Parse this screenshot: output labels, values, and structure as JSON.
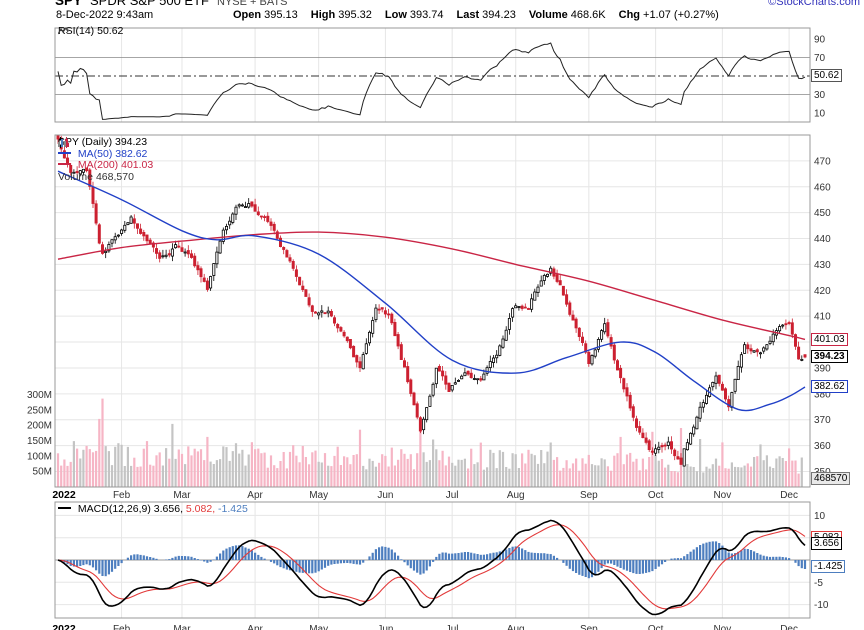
{
  "header": {
    "symbol": "SPY",
    "name": "SPDR S&P 500 ETF",
    "exchange": "NYSE + BATS",
    "copyright": "©StockCharts.com",
    "datetime": "8-Dec-2022 9:43am",
    "quote": {
      "open_label": "Open",
      "open": "395.13",
      "high_label": "High",
      "high": "395.32",
      "low_label": "Low",
      "low": "393.74",
      "last_label": "Last",
      "last": "394.23",
      "volume_label": "Volume",
      "volume": "468.6K",
      "chg_label": "Chg",
      "chg": "+1.07 (+0.27%)"
    }
  },
  "rsi_panel": {
    "label": "RSI(14)",
    "value": "50.62",
    "badge": "50.62"
  },
  "price_panel": {
    "legend_symbol": "SPY (Daily)",
    "legend_last": "394.23",
    "ma50_label": "MA(50)",
    "ma50_value": "382.62",
    "ma200_label": "MA(200)",
    "ma200_value": "401.03",
    "volume_label": "Volume",
    "volume_value": "468,570",
    "badges": {
      "ma200": "401.03",
      "last": "394.23",
      "ma50": "382.62",
      "volume": "468570"
    }
  },
  "macd_panel": {
    "label": "MACD(12,26,9)",
    "values": [
      "3.656,",
      "5.082,",
      "-1.425"
    ],
    "badges": {
      "signal": "5.082",
      "macd": "3.656",
      "hist": "-1.425"
    }
  },
  "colors": {
    "candle_up": "#000000",
    "candle_down": "#cc2030",
    "ma50": "#2140c7",
    "ma200": "#c92545",
    "volume_up": "#c4c4c4",
    "volume_down": "#f6b5c5",
    "macd_line": "#000000",
    "signal_line": "#e23a3a",
    "histogram": "#4d7ebf",
    "rsi_line": "#222222",
    "grid": "#e6e6e6",
    "panel_border": "#999999",
    "axis_text": "#333333",
    "copyright": "#3333bb"
  },
  "chart_data": [
    {
      "type": "line",
      "panel": "RSI",
      "title": "RSI(14)",
      "last_value": 50.62,
      "ylim": [
        0,
        100
      ],
      "yticks": [
        90,
        70,
        30,
        10
      ],
      "current_tick": 50.62,
      "reference_lines": {
        "overbought": 70,
        "midline": 50,
        "oversold": 30
      }
    },
    {
      "type": "candlestick",
      "panel": "price",
      "title": "SPY (Daily)",
      "last_close": 394.23,
      "ylim": [
        344,
        480
      ],
      "yticks": [
        470,
        460,
        450,
        440,
        430,
        420,
        410,
        400,
        390,
        380,
        370,
        360,
        350
      ],
      "trading_days": 236,
      "x_months": {
        "labels": [
          "2022",
          "Feb",
          "Mar",
          "Apr",
          "May",
          "Jun",
          "Jul",
          "Aug",
          "Sep",
          "Oct",
          "Nov",
          "Dec"
        ],
        "start_index": [
          0,
          20,
          39,
          62,
          82,
          103,
          124,
          144,
          167,
          188,
          209,
          230
        ]
      },
      "last_bar": {
        "open": 395.13,
        "high": 395.32,
        "low": 393.74,
        "close": 394.23,
        "volume": 468570
      },
      "weekly_closes": [
        [
          0,
          477.7
        ],
        [
          4,
          466.1
        ],
        [
          9,
          464.7
        ],
        [
          13,
          438.0
        ],
        [
          14,
          434.5
        ],
        [
          18,
          442.0
        ],
        [
          23,
          448.7
        ],
        [
          28,
          440.5
        ],
        [
          32,
          434.2
        ],
        [
          37,
          437.8
        ],
        [
          42,
          432.2
        ],
        [
          47,
          420.1
        ],
        [
          52,
          444.5
        ],
        [
          57,
          452.7
        ],
        [
          61,
          452.9
        ],
        [
          66,
          447.6
        ],
        [
          70,
          437.8
        ],
        [
          75,
          426.0
        ],
        [
          80,
          412.0
        ],
        [
          85,
          411.3
        ],
        [
          90,
          401.7
        ],
        [
          95,
          389.6
        ],
        [
          100,
          415.3
        ],
        [
          104,
          410.5
        ],
        [
          109,
          389.8
        ],
        [
          114,
          365.9
        ],
        [
          119,
          390.1
        ],
        [
          123,
          381.2
        ],
        [
          128,
          388.7
        ],
        [
          133,
          385.1
        ],
        [
          138,
          395.1
        ],
        [
          143,
          412.0
        ],
        [
          148,
          413.5
        ],
        [
          153,
          427.1
        ],
        [
          155,
          429.5
        ],
        [
          158,
          422.1
        ],
        [
          163,
          405.3
        ],
        [
          167,
          392.2
        ],
        [
          172,
          406.6
        ],
        [
          177,
          385.6
        ],
        [
          182,
          368.0
        ],
        [
          187,
          357.2
        ],
        [
          192,
          362.8
        ],
        [
          196,
          352.5
        ],
        [
          197,
          357.6
        ],
        [
          202,
          374.3
        ],
        [
          207,
          389.0
        ],
        [
          211,
          376.4
        ],
        [
          216,
          398.5
        ],
        [
          221,
          396.0
        ],
        [
          225,
          402.3
        ],
        [
          230,
          406.9
        ],
        [
          233,
          393.2
        ],
        [
          235,
          394.23
        ]
      ],
      "ma50": {
        "label": "MA(50)",
        "last": 382.62,
        "anchors": [
          [
            0,
            466
          ],
          [
            20,
            455
          ],
          [
            39,
            443
          ],
          [
            50,
            439.5
          ],
          [
            62,
            441
          ],
          [
            82,
            434
          ],
          [
            103,
            415
          ],
          [
            124,
            393
          ],
          [
            144,
            388
          ],
          [
            160,
            394
          ],
          [
            177,
            400
          ],
          [
            188,
            396
          ],
          [
            200,
            385
          ],
          [
            214,
            374
          ],
          [
            224,
            376
          ],
          [
            230,
            379
          ],
          [
            235,
            382.62
          ]
        ]
      },
      "ma200": {
        "label": "MA(200)",
        "last": 401.03,
        "anchors": [
          [
            0,
            432
          ],
          [
            20,
            436.5
          ],
          [
            39,
            439
          ],
          [
            62,
            441.5
          ],
          [
            82,
            442.5
          ],
          [
            103,
            440.5
          ],
          [
            124,
            436
          ],
          [
            144,
            430
          ],
          [
            167,
            423.5
          ],
          [
            188,
            416
          ],
          [
            209,
            408.5
          ],
          [
            230,
            402.5
          ],
          [
            235,
            401.03
          ]
        ]
      },
      "volume": {
        "axis_ticks": {
          "labels": [
            "300M",
            "250M",
            "200M",
            "150M",
            "100M",
            "50M"
          ],
          "values_M": [
            300,
            250,
            200,
            150,
            100,
            50
          ]
        },
        "typical_range_M": [
          55,
          145
        ],
        "spikes_M": [
          [
            13,
            225
          ],
          [
            14,
            300
          ],
          [
            36,
            210
          ],
          [
            47,
            165
          ],
          [
            61,
            150
          ],
          [
            95,
            185
          ],
          [
            114,
            205
          ],
          [
            118,
            155
          ],
          [
            133,
            140
          ],
          [
            155,
            150
          ],
          [
            177,
            160
          ],
          [
            187,
            175
          ],
          [
            196,
            195
          ],
          [
            202,
            150
          ],
          [
            209,
            148
          ],
          [
            221,
            135
          ],
          [
            230,
            125
          ]
        ],
        "last": 468570
      }
    },
    {
      "type": "line+histogram",
      "panel": "MACD",
      "title": "MACD(12,26,9)",
      "params": [
        12,
        26,
        9
      ],
      "macd_last": 3.656,
      "signal_last": 5.082,
      "histogram_last": -1.425,
      "ylim": [
        -13,
        13
      ],
      "yticks": [
        10,
        5,
        -5,
        -10
      ]
    }
  ]
}
